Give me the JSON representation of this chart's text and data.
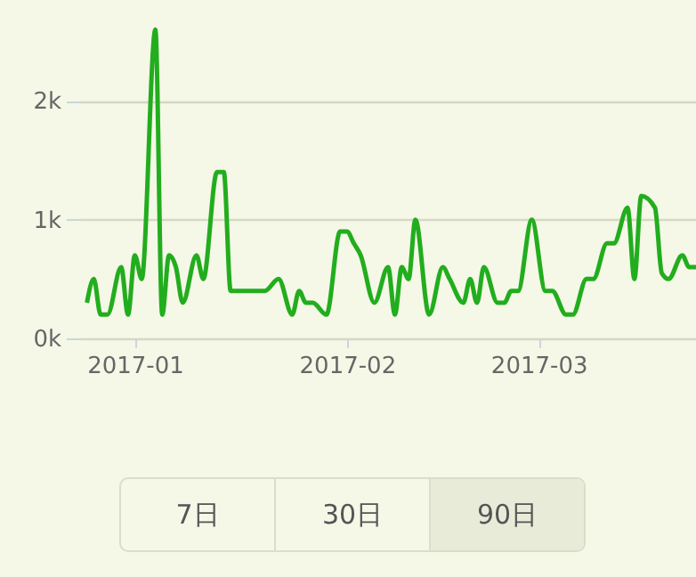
{
  "chart_data": {
    "type": "line",
    "x": [
      "2016-12-25",
      "2016-12-26",
      "2016-12-27",
      "2016-12-28",
      "2016-12-30",
      "2016-12-31",
      "2017-01-01",
      "2017-01-02",
      "2017-01-04",
      "2017-01-05",
      "2017-01-06",
      "2017-01-07",
      "2017-01-08",
      "2017-01-10",
      "2017-01-11",
      "2017-01-13",
      "2017-01-14",
      "2017-01-15",
      "2017-01-20",
      "2017-01-22",
      "2017-01-24",
      "2017-01-25",
      "2017-01-26",
      "2017-01-27",
      "2017-01-29",
      "2017-01-31",
      "2017-02-01",
      "2017-02-02",
      "2017-02-03",
      "2017-02-05",
      "2017-02-07",
      "2017-02-08",
      "2017-02-09",
      "2017-02-10",
      "2017-02-11",
      "2017-02-13",
      "2017-02-15",
      "2017-02-16",
      "2017-02-18",
      "2017-02-19",
      "2017-02-20",
      "2017-02-21",
      "2017-02-23",
      "2017-02-24",
      "2017-02-25",
      "2017-02-26",
      "2017-02-28",
      "2017-03-02",
      "2017-03-03",
      "2017-03-05",
      "2017-03-06",
      "2017-03-08",
      "2017-03-09",
      "2017-03-11",
      "2017-03-12",
      "2017-03-14",
      "2017-03-15",
      "2017-03-16",
      "2017-03-18",
      "2017-03-19",
      "2017-03-20",
      "2017-03-22",
      "2017-03-23",
      "2017-03-24"
    ],
    "series": [
      {
        "color": "#22ad1e",
        "values": [
          300,
          500,
          200,
          200,
          600,
          200,
          700,
          500,
          2600,
          200,
          700,
          600,
          300,
          700,
          500,
          1400,
          1400,
          400,
          400,
          500,
          200,
          400,
          300,
          300,
          200,
          900,
          900,
          800,
          700,
          300,
          600,
          200,
          600,
          500,
          1000,
          200,
          600,
          500,
          300,
          500,
          300,
          600,
          300,
          300,
          400,
          400,
          1000,
          400,
          400,
          200,
          200,
          500,
          500,
          800,
          800,
          1100,
          500,
          1200,
          1100,
          550,
          500,
          700,
          600,
          600
        ]
      }
    ],
    "xlim": [
      "2016-12-24",
      "2017-03-24"
    ],
    "xticks": [
      "2017-01",
      "2017-02",
      "2017-03"
    ],
    "ylim": [
      0,
      2850
    ],
    "yticks": [
      {
        "value": 0,
        "label": "0k"
      },
      {
        "value": 1000,
        "label": "1k"
      },
      {
        "value": 2000,
        "label": "2k"
      }
    ],
    "grid": "y",
    "marker": "none",
    "line_style": "solid",
    "annotations": [
      "7日",
      "30日",
      "90日"
    ]
  }
}
